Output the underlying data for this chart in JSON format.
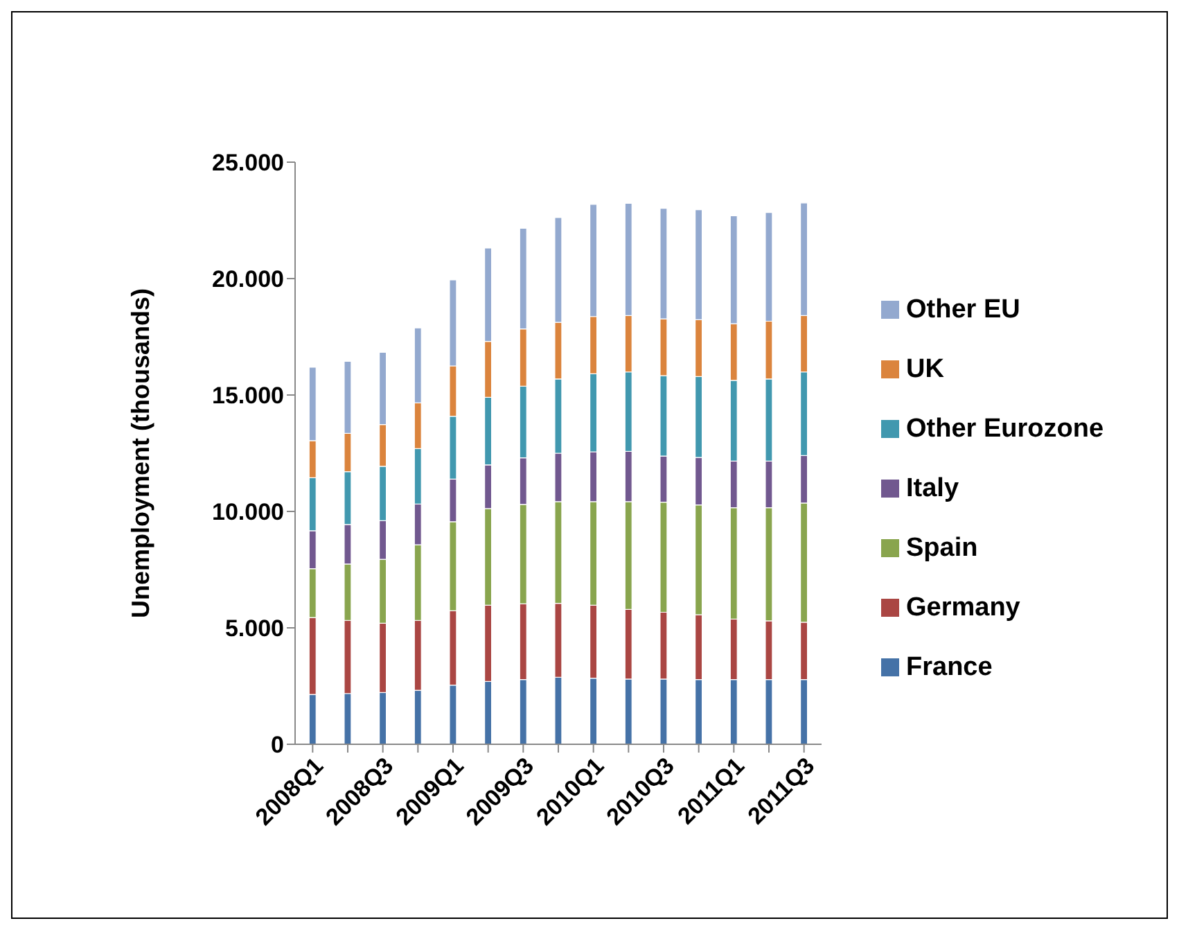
{
  "chart_data": {
    "type": "bar",
    "stacked": true,
    "ylabel": "Unemployment (thousands)",
    "categories": [
      "2008Q1",
      null,
      "2008Q3",
      null,
      "2009Q1",
      null,
      "2009Q3",
      null,
      "2010Q1",
      null,
      "2010Q3",
      null,
      "2011Q1",
      null,
      "2011Q3"
    ],
    "ylim": [
      0,
      25000
    ],
    "yticks": [
      0,
      {
        "value": 5000,
        "label": "5.000"
      },
      {
        "value": 10000,
        "label": "10.000"
      },
      {
        "value": 15000,
        "label": "15.000"
      },
      {
        "value": 20000,
        "label": "20.000"
      },
      {
        "value": 25000,
        "label": "25.000"
      }
    ],
    "legend": "right",
    "series": [
      {
        "name": "France",
        "color": "#4572a7",
        "values": [
          2140,
          2180,
          2220,
          2320,
          2540,
          2700,
          2780,
          2880,
          2840,
          2800,
          2800,
          2780,
          2780,
          2780,
          2780
        ]
      },
      {
        "name": "Germany",
        "color": "#aa4643",
        "values": [
          3300,
          3140,
          2980,
          3000,
          3190,
          3270,
          3250,
          3170,
          3130,
          2990,
          2870,
          2780,
          2600,
          2520,
          2460
        ]
      },
      {
        "name": "Spain",
        "color": "#89a54e",
        "values": [
          2100,
          2420,
          2740,
          3250,
          3830,
          4150,
          4270,
          4370,
          4450,
          4630,
          4730,
          4720,
          4780,
          4860,
          5120
        ]
      },
      {
        "name": "Italy",
        "color": "#71588f",
        "values": [
          1630,
          1700,
          1660,
          1750,
          1830,
          1880,
          2000,
          2080,
          2140,
          2160,
          1980,
          2040,
          2000,
          2000,
          2040
        ]
      },
      {
        "name": "Other Eurozone",
        "color": "#4198af",
        "values": [
          2280,
          2270,
          2340,
          2380,
          2700,
          2900,
          3080,
          3190,
          3350,
          3410,
          3450,
          3470,
          3470,
          3530,
          3590
        ]
      },
      {
        "name": "UK",
        "color": "#db843d",
        "values": [
          1590,
          1640,
          1790,
          1960,
          2160,
          2400,
          2460,
          2430,
          2460,
          2420,
          2440,
          2440,
          2430,
          2480,
          2420
        ]
      },
      {
        "name": "Other EU",
        "color": "#93a9cf",
        "values": [
          3150,
          3100,
          3100,
          3220,
          3690,
          4010,
          4320,
          4500,
          4820,
          4820,
          4750,
          4730,
          4640,
          4670,
          4840
        ]
      }
    ]
  }
}
